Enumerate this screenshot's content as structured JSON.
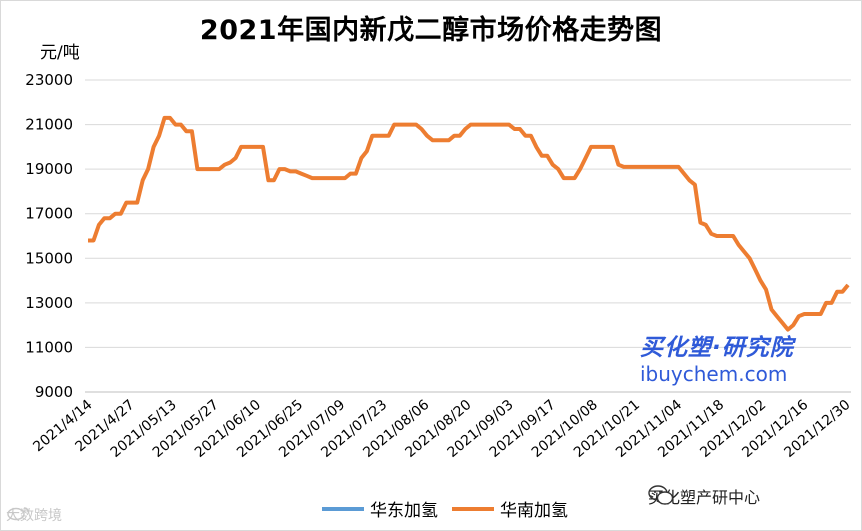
{
  "chart_data": {
    "type": "line",
    "title": "2021年国内新戊二醇市场价格走势图",
    "ylabel": "元/吨",
    "ylim": [
      9000,
      23000
    ],
    "yticks": [
      9000,
      11000,
      13000,
      15000,
      17000,
      19000,
      21000,
      23000
    ],
    "xlabels": [
      "2021/4/14",
      "2021/4/27",
      "2021/05/13",
      "2021/05/27",
      "2021/06/10",
      "2021/06/25",
      "2021/07/09",
      "2021/07/23",
      "2021/08/06",
      "2021/08/20",
      "2021/09/03",
      "2021/09/17",
      "2021/10/08",
      "2021/10/21",
      "2021/11/04",
      "2021/11/18",
      "2021/12/02",
      "2021/12/16",
      "2021/12/30"
    ],
    "grid": true,
    "legend_position": "bottom",
    "series": [
      {
        "name": "华东加氢",
        "color": "#5b9bd5",
        "values": [
          15800,
          15800,
          16500,
          16800,
          16800,
          17000,
          17000,
          17500,
          17500,
          17500,
          18500,
          19000,
          20000,
          20500,
          21300,
          21300,
          21000,
          21000,
          20700,
          20700,
          19000,
          19000,
          19000,
          19000,
          19000,
          19200,
          19300,
          19500,
          20000,
          20000,
          20000,
          20000,
          20000,
          18500,
          18500,
          19000,
          19000,
          18900,
          18900,
          18800,
          18700,
          18600,
          18600,
          18600,
          18600,
          18600,
          18600,
          18600,
          18800,
          18800,
          19500,
          19800,
          20500,
          20500,
          20500,
          20500,
          21000,
          21000,
          21000,
          21000,
          21000,
          20800,
          20500,
          20300,
          20300,
          20300,
          20300,
          20500,
          20500,
          20800,
          21000,
          21000,
          21000,
          21000,
          21000,
          21000,
          21000,
          21000,
          20800,
          20800,
          20500,
          20500,
          20000,
          19600,
          19600,
          19200,
          19000,
          18600,
          18600,
          18600,
          19000,
          19500,
          20000,
          20000,
          20000,
          20000,
          20000,
          19200,
          19100,
          19100,
          19100,
          19100,
          19100,
          19100,
          19100,
          19100,
          19100,
          19100,
          19100,
          18800,
          18500,
          18300,
          16600,
          16500,
          16100,
          16000,
          16000,
          16000,
          16000,
          15600,
          15300,
          15000,
          14500,
          14000,
          13600,
          12700,
          12400,
          12100,
          11800,
          12000,
          12400,
          12500,
          12500,
          12500,
          12500,
          13000,
          13000,
          13500,
          13500,
          13800
        ]
      },
      {
        "name": "华南加氢",
        "color": "#ed7d31",
        "values": [
          15800,
          15800,
          16500,
          16800,
          16800,
          17000,
          17000,
          17500,
          17500,
          17500,
          18500,
          19000,
          20000,
          20500,
          21300,
          21300,
          21000,
          21000,
          20700,
          20700,
          19000,
          19000,
          19000,
          19000,
          19000,
          19200,
          19300,
          19500,
          20000,
          20000,
          20000,
          20000,
          20000,
          18500,
          18500,
          19000,
          19000,
          18900,
          18900,
          18800,
          18700,
          18600,
          18600,
          18600,
          18600,
          18600,
          18600,
          18600,
          18800,
          18800,
          19500,
          19800,
          20500,
          20500,
          20500,
          20500,
          21000,
          21000,
          21000,
          21000,
          21000,
          20800,
          20500,
          20300,
          20300,
          20300,
          20300,
          20500,
          20500,
          20800,
          21000,
          21000,
          21000,
          21000,
          21000,
          21000,
          21000,
          21000,
          20800,
          20800,
          20500,
          20500,
          20000,
          19600,
          19600,
          19200,
          19000,
          18600,
          18600,
          18600,
          19000,
          19500,
          20000,
          20000,
          20000,
          20000,
          20000,
          19200,
          19100,
          19100,
          19100,
          19100,
          19100,
          19100,
          19100,
          19100,
          19100,
          19100,
          19100,
          18800,
          18500,
          18300,
          16600,
          16500,
          16100,
          16000,
          16000,
          16000,
          16000,
          15600,
          15300,
          15000,
          14500,
          14000,
          13600,
          12700,
          12400,
          12100,
          11800,
          12000,
          12400,
          12500,
          12500,
          12500,
          12500,
          13000,
          13000,
          13500,
          13500,
          13800
        ]
      }
    ]
  },
  "watermark": {
    "brand_cn": "买化塑·研究院",
    "brand_url": "ibuychem.com"
  },
  "wechat_source": {
    "label": "买化塑产研中心",
    "icon": "wechat-icon"
  },
  "weibo_source": {
    "label": "大数跨境",
    "icon": "weibo-icon"
  }
}
